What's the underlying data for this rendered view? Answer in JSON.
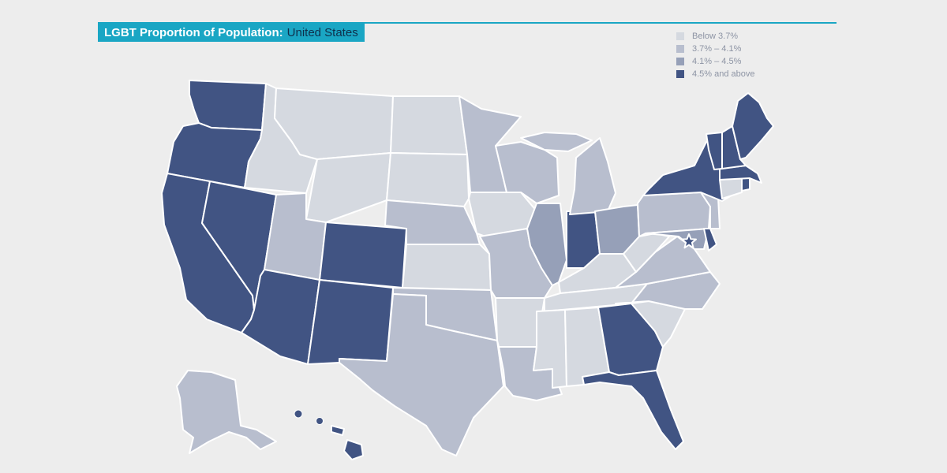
{
  "title": {
    "main": "LGBT Proportion of Population:",
    "country": "United States"
  },
  "colors": {
    "background": "#ededed",
    "accent": "#1aa6c4",
    "below_3_7": "#d5d9e0",
    "between_3_7_4_1": "#b8bece",
    "between_4_1_4_5": "#96a0b8",
    "above_4_5": "#415483"
  },
  "legend": [
    {
      "label": "Below 3.7%",
      "color": "#d5d9e0"
    },
    {
      "label": "3.7% – 4.1%",
      "color": "#b8bece"
    },
    {
      "label": "4.1% – 4.5%",
      "color": "#96a0b8"
    },
    {
      "label": "4.5% and above",
      "color": "#415483"
    }
  ],
  "states": {
    "below_3_7": [
      "Montana",
      "Idaho",
      "Wyoming",
      "North Dakota",
      "South Dakota",
      "Kansas",
      "Iowa",
      "Arkansas",
      "Mississippi",
      "Alabama",
      "Tennessee",
      "Kentucky",
      "West Virginia",
      "South Carolina",
      "Connecticut"
    ],
    "between_3_7_4_1": [
      "Alaska",
      "Utah",
      "Nebraska",
      "Minnesota",
      "Wisconsin",
      "Michigan",
      "Missouri",
      "Oklahoma",
      "Texas",
      "Louisiana",
      "Pennsylvania",
      "New Jersey",
      "Virginia",
      "North Carolina"
    ],
    "between_4_1_4_5": [
      "Illinois",
      "Ohio",
      "Maryland"
    ],
    "above_4_5": [
      "Washington",
      "Oregon",
      "California",
      "Nevada",
      "Arizona",
      "Colorado",
      "New Mexico",
      "Hawaii",
      "Indiana",
      "Georgia",
      "Florida",
      "New York",
      "Vermont",
      "New Hampshire",
      "Maine",
      "Massachusetts",
      "Rhode Island",
      "Delaware",
      "District of Columbia"
    ]
  }
}
